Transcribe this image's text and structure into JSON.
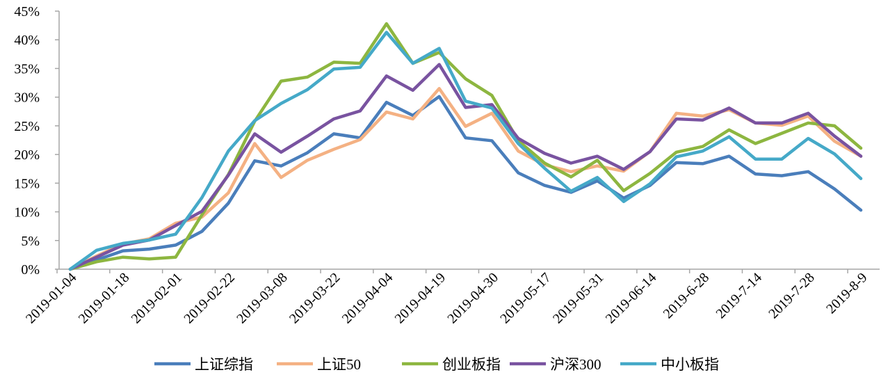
{
  "chart_data": {
    "type": "line",
    "title": "",
    "xlabel": "",
    "ylabel": "",
    "ylim": [
      0,
      45
    ],
    "y_tick_format": "percent",
    "yticks": [
      "0%",
      "5%",
      "10%",
      "15%",
      "20%",
      "25%",
      "30%",
      "35%",
      "40%",
      "45%"
    ],
    "grid": false,
    "legend_position": "bottom",
    "x_tick_labels": [
      "2019-01-04",
      "2019-01-18",
      "2019-02-01",
      "2019-02-22",
      "2019-03-08",
      "2019-03-22",
      "2019-04-04",
      "2019-04-19",
      "2019-04-30",
      "2019-05-17",
      "2019-05-31",
      "2019-06-14",
      "2019-6-28",
      "2019-7-14",
      "2019-7-28",
      "2019-8-9"
    ],
    "x_tick_label_index": [
      0,
      2,
      4,
      6,
      8,
      10,
      12,
      14,
      16,
      18,
      20,
      22,
      24,
      26,
      28,
      30
    ],
    "n_points": 31,
    "series": [
      {
        "name": "上证综指",
        "color": "#4a7ebb",
        "values": [
          0,
          1.6,
          3.2,
          3.5,
          4.2,
          6.6,
          11.5,
          18.9,
          18.0,
          20.3,
          23.6,
          22.9,
          29.1,
          26.8,
          30.1,
          22.9,
          22.4,
          16.8,
          14.6,
          13.4,
          15.4,
          12.4,
          14.6,
          18.6,
          18.4,
          19.7,
          16.6,
          16.3,
          17.0,
          14.0,
          10.3
        ]
      },
      {
        "name": "上证50",
        "color": "#f4b183",
        "values": [
          0,
          2.3,
          4.4,
          5.3,
          8.0,
          9.1,
          13.3,
          21.9,
          16.0,
          19.0,
          20.9,
          22.6,
          27.4,
          26.2,
          31.5,
          24.9,
          27.2,
          20.6,
          18.2,
          17.0,
          18.0,
          17.1,
          20.5,
          27.2,
          26.7,
          27.8,
          25.5,
          25.1,
          26.7,
          22.3,
          19.7
        ]
      },
      {
        "name": "创业板指",
        "color": "#8db640",
        "values": [
          0,
          1.3,
          2.1,
          1.8,
          2.1,
          9.5,
          16.5,
          25.8,
          32.8,
          33.5,
          36.1,
          35.9,
          42.8,
          35.9,
          37.8,
          33.2,
          30.3,
          22.4,
          18.5,
          16.1,
          19.0,
          13.7,
          16.7,
          20.4,
          21.4,
          24.3,
          21.9,
          23.7,
          25.5,
          25.0,
          21.1
        ]
      },
      {
        "name": "沪深300",
        "color": "#7953a0",
        "values": [
          0,
          2.1,
          4.2,
          5.1,
          7.6,
          10.1,
          16.4,
          23.6,
          20.4,
          23.2,
          26.2,
          27.6,
          33.7,
          31.2,
          35.7,
          28.2,
          28.7,
          22.8,
          20.2,
          18.5,
          19.7,
          17.4,
          20.5,
          26.2,
          26.0,
          28.1,
          25.5,
          25.5,
          27.2,
          23.2,
          19.7
        ]
      },
      {
        "name": "中小板指",
        "color": "#45a9c8",
        "values": [
          0,
          3.3,
          4.5,
          5.1,
          6.1,
          12.5,
          20.6,
          25.9,
          28.9,
          31.3,
          34.9,
          35.2,
          41.3,
          35.9,
          38.5,
          29.3,
          28.1,
          21.9,
          17.6,
          13.6,
          16.0,
          11.8,
          14.9,
          19.6,
          20.6,
          23.1,
          19.2,
          19.2,
          22.8,
          20.1,
          15.8
        ]
      }
    ]
  }
}
